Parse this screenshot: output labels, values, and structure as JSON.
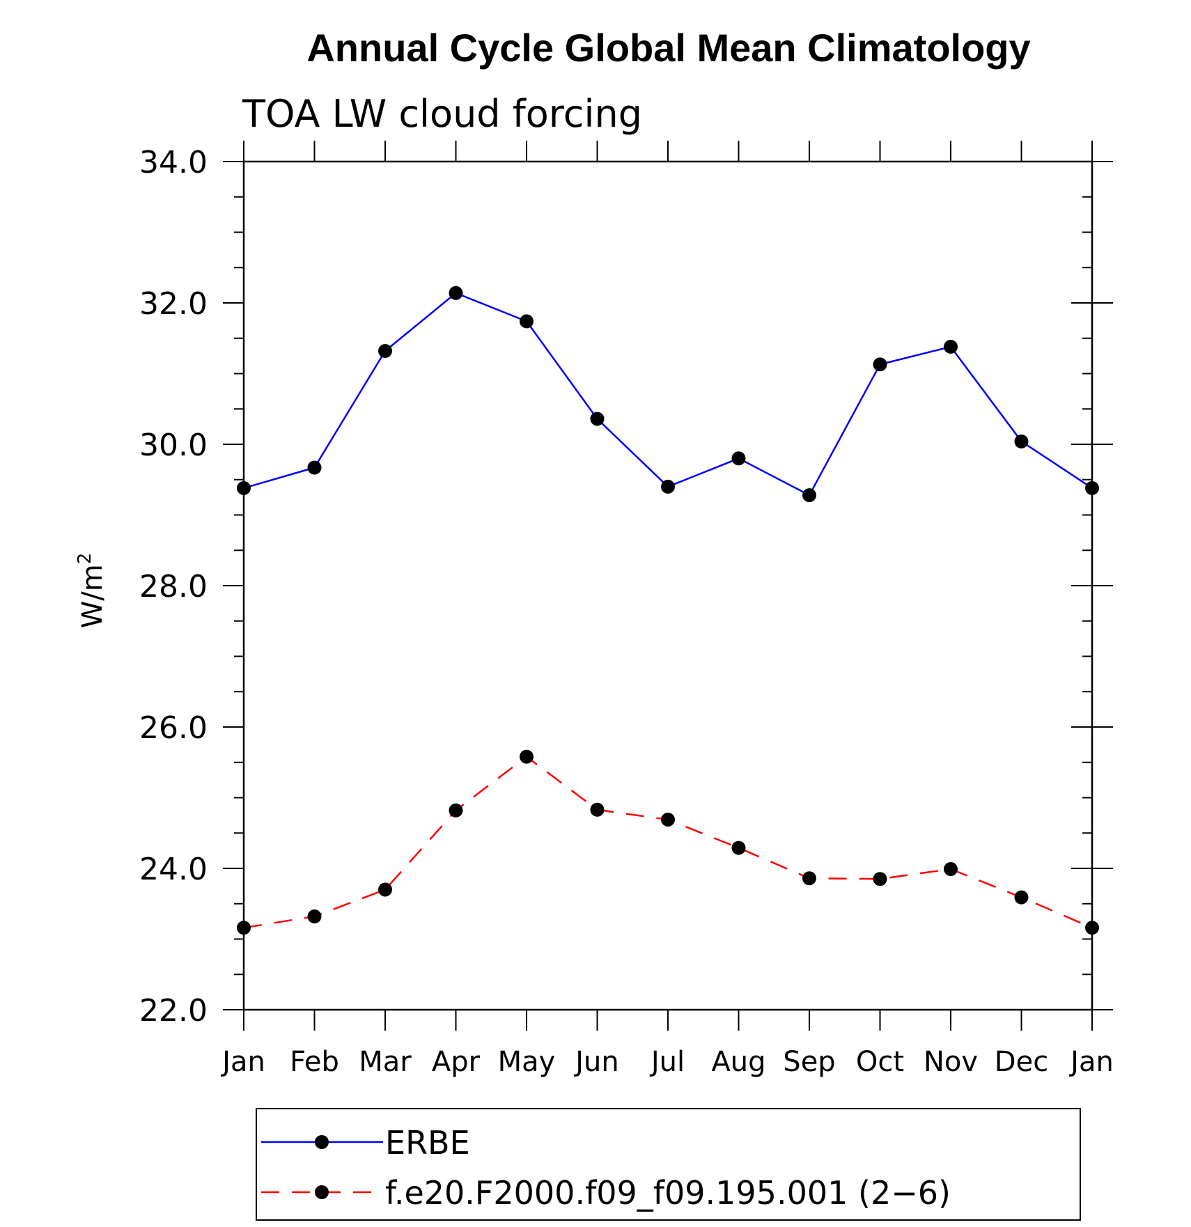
{
  "chart_data": {
    "type": "line",
    "title": "Annual Cycle Global Mean Climatology",
    "subtitle": "TOA LW cloud forcing",
    "ylabel": "W/m",
    "ylabel_sup": "2",
    "categories": [
      "Jan",
      "Feb",
      "Mar",
      "Apr",
      "May",
      "Jun",
      "Jul",
      "Aug",
      "Sep",
      "Oct",
      "Nov",
      "Dec",
      "Jan"
    ],
    "ylim": [
      22.0,
      34.0
    ],
    "y_ticks": [
      "22.0",
      "24.0",
      "26.0",
      "28.0",
      "30.0",
      "32.0",
      "34.0"
    ],
    "legend_position": "bottom",
    "series": [
      {
        "name": "ERBE",
        "color": "#0000ff",
        "dash": "solid",
        "values": [
          29.38,
          29.67,
          31.32,
          32.14,
          31.74,
          30.36,
          29.4,
          29.8,
          29.28,
          31.13,
          31.38,
          30.04,
          29.38
        ]
      },
      {
        "name": "f.e20.F2000.f09_f09.195.001 (2−6)",
        "color": "#ff0000",
        "dash": "dashed",
        "values": [
          23.16,
          23.32,
          23.7,
          24.82,
          25.58,
          24.83,
          24.69,
          24.29,
          23.86,
          23.85,
          23.99,
          23.59,
          23.16
        ]
      }
    ]
  }
}
